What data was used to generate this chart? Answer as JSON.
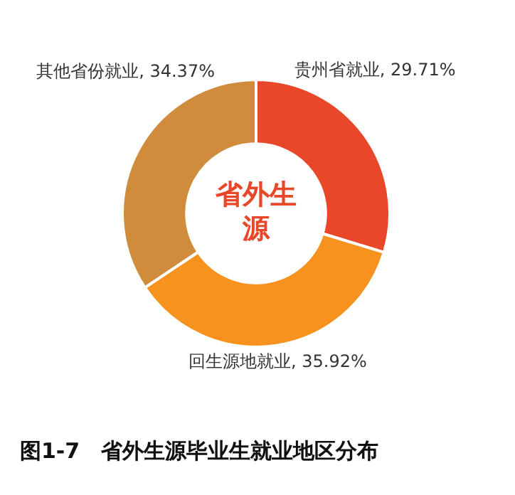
{
  "chart_data": {
    "type": "donut",
    "title": "图1-7　省外生源毕业生就业地区分布",
    "categories": [
      "贵州省就业",
      "回生源地就业",
      "其他省份就业"
    ],
    "values": [
      29.71,
      35.92,
      34.37
    ],
    "colors": [
      "#e8472a",
      "#f7921e",
      "#d08c3c"
    ],
    "value_labels": [
      ", 29.71%",
      ", 35.92%",
      ", 34.37%"
    ],
    "legend": false,
    "annotations": [
      "省外生源"
    ]
  }
}
